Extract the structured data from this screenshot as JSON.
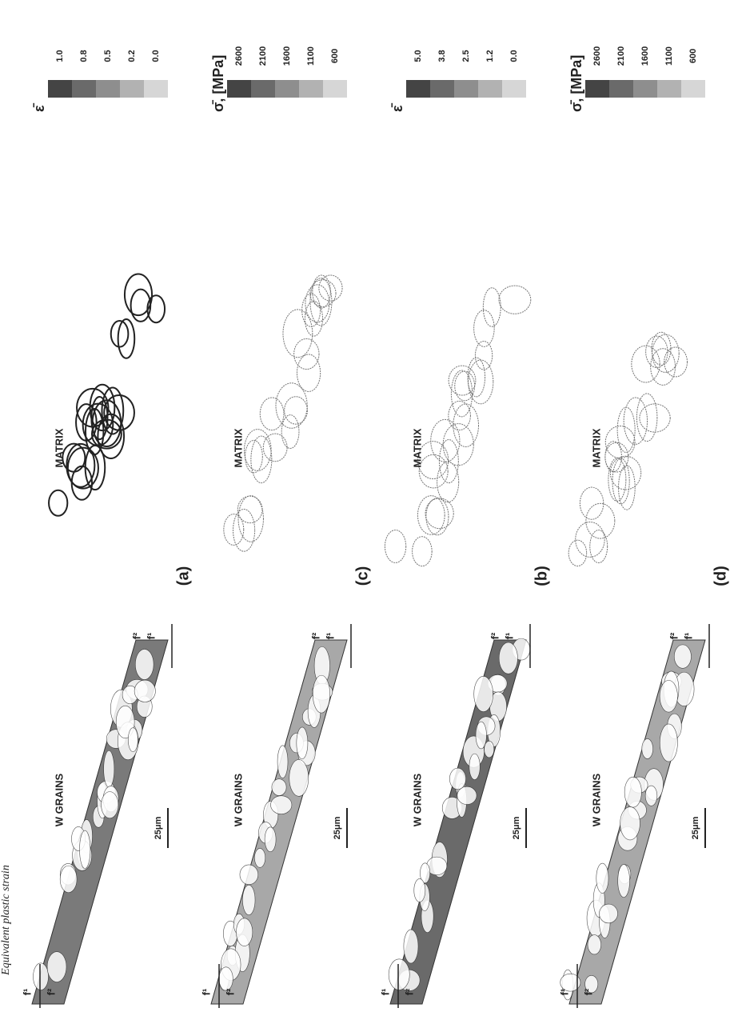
{
  "caption": "Equivalent plastic strain",
  "panels": [
    {
      "label": "(a)",
      "grains": "W GRAINS",
      "matrix": "MATRIX",
      "scale": "25μm",
      "forces": [
        "f¹",
        "f²",
        "f¹",
        "f²"
      ],
      "legend": {
        "symbol": "ε̄",
        "ticks": [
          "1.0",
          "0.8",
          "0.5",
          "0.2",
          "0.0"
        ]
      }
    },
    {
      "label": "(c)",
      "grains": "W GRAINS",
      "matrix": "MATRIX",
      "scale": "25μm",
      "forces": [
        "f¹",
        "f²",
        "f¹",
        "f²"
      ],
      "legend": {
        "symbol": "σ̄, [MPa]",
        "ticks": [
          "2600",
          "2100",
          "1600",
          "1100",
          "600"
        ]
      }
    },
    {
      "label": "(b)",
      "grains": "W GRAINS",
      "matrix": "MATRIX",
      "scale": "25μm",
      "forces": [
        "f¹",
        "f²",
        "f¹",
        "f²"
      ],
      "legend": {
        "symbol": "ε̄",
        "ticks": [
          "5.0",
          "3.8",
          "2.5",
          "1.2",
          "0.0"
        ]
      }
    },
    {
      "label": "(d)",
      "grains": "W GRAINS",
      "matrix": "MATRIX",
      "scale": "25μm",
      "forces": [
        "f¹",
        "f²",
        "f¹",
        "f²"
      ],
      "legend": {
        "symbol": "σ̄, [MPa]",
        "ticks": [
          "2600",
          "2100",
          "1600",
          "1100",
          "600"
        ]
      }
    }
  ]
}
